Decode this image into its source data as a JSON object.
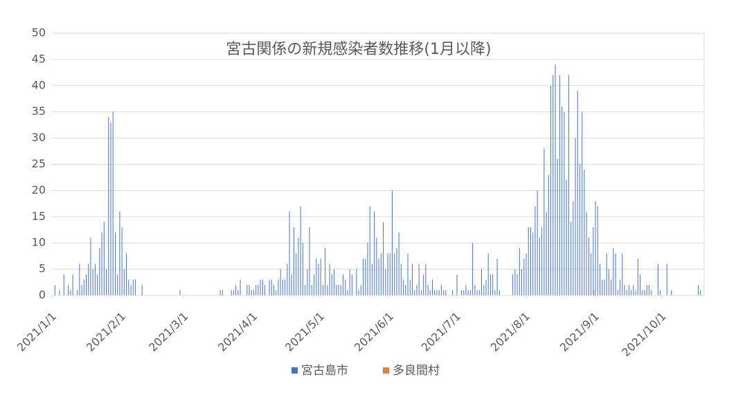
{
  "chart_data": {
    "type": "bar",
    "title": "宮古関係の新規感染者数推移(1月以降)",
    "x": [
      "2021/1/1",
      "2021/1/2",
      "2021/1/3",
      "2021/1/4",
      "2021/1/5",
      "2021/1/6",
      "2021/1/7",
      "2021/1/8",
      "2021/1/9",
      "2021/1/10",
      "2021/1/11",
      "2021/1/12",
      "2021/1/13",
      "2021/1/14",
      "2021/1/15",
      "2021/1/16",
      "2021/1/17",
      "2021/1/18",
      "2021/1/19",
      "2021/1/20",
      "2021/1/21",
      "2021/1/22",
      "2021/1/23",
      "2021/1/24",
      "2021/1/25",
      "2021/1/26",
      "2021/1/27",
      "2021/1/28",
      "2021/1/29",
      "2021/1/30",
      "2021/1/31",
      "2021/2/1",
      "2021/2/2",
      "2021/2/3",
      "2021/2/4",
      "2021/2/5",
      "2021/2/6",
      "2021/2/7",
      "2021/2/8",
      "2021/2/9",
      "2021/2/10",
      "2021/2/11",
      "2021/2/12",
      "2021/2/13",
      "2021/2/14",
      "2021/2/15",
      "2021/2/16",
      "2021/2/17",
      "2021/2/18",
      "2021/2/19",
      "2021/2/20",
      "2021/2/21",
      "2021/2/22",
      "2021/2/23",
      "2021/2/24",
      "2021/2/25",
      "2021/2/26",
      "2021/2/27",
      "2021/2/28",
      "2021/3/1",
      "2021/3/2",
      "2021/3/3",
      "2021/3/4",
      "2021/3/5",
      "2021/3/6",
      "2021/3/7",
      "2021/3/8",
      "2021/3/9",
      "2021/3/10",
      "2021/3/11",
      "2021/3/12",
      "2021/3/13",
      "2021/3/14",
      "2021/3/15",
      "2021/3/16",
      "2021/3/17",
      "2021/3/18",
      "2021/3/19",
      "2021/3/20",
      "2021/3/21",
      "2021/3/22",
      "2021/3/23",
      "2021/3/24",
      "2021/3/25",
      "2021/3/26",
      "2021/3/27",
      "2021/3/28",
      "2021/3/29",
      "2021/3/30",
      "2021/3/31",
      "2021/4/1",
      "2021/4/2",
      "2021/4/3",
      "2021/4/4",
      "2021/4/5",
      "2021/4/6",
      "2021/4/7",
      "2021/4/8",
      "2021/4/9",
      "2021/4/10",
      "2021/4/11",
      "2021/4/12",
      "2021/4/13",
      "2021/4/14",
      "2021/4/15",
      "2021/4/16",
      "2021/4/17",
      "2021/4/18",
      "2021/4/19",
      "2021/4/20",
      "2021/4/21",
      "2021/4/22",
      "2021/4/23",
      "2021/4/24",
      "2021/4/25",
      "2021/4/26",
      "2021/4/27",
      "2021/4/28",
      "2021/4/29",
      "2021/4/30",
      "2021/5/1",
      "2021/5/2",
      "2021/5/3",
      "2021/5/4",
      "2021/5/5",
      "2021/5/6",
      "2021/5/7",
      "2021/5/8",
      "2021/5/9",
      "2021/5/10",
      "2021/5/11",
      "2021/5/12",
      "2021/5/13",
      "2021/5/14",
      "2021/5/15",
      "2021/5/16",
      "2021/5/17",
      "2021/5/18",
      "2021/5/19",
      "2021/5/20",
      "2021/5/21",
      "2021/5/22",
      "2021/5/23",
      "2021/5/24",
      "2021/5/25",
      "2021/5/26",
      "2021/5/27",
      "2021/5/28",
      "2021/5/29",
      "2021/5/30",
      "2021/5/31",
      "2021/6/1",
      "2021/6/2",
      "2021/6/3",
      "2021/6/4",
      "2021/6/5",
      "2021/6/6",
      "2021/6/7",
      "2021/6/8",
      "2021/6/9",
      "2021/6/10",
      "2021/6/11",
      "2021/6/12",
      "2021/6/13",
      "2021/6/14",
      "2021/6/15",
      "2021/6/16",
      "2021/6/17",
      "2021/6/18",
      "2021/6/19",
      "2021/6/20",
      "2021/6/21",
      "2021/6/22",
      "2021/6/23",
      "2021/6/24",
      "2021/6/25",
      "2021/6/26",
      "2021/6/27",
      "2021/6/28",
      "2021/6/29",
      "2021/6/30",
      "2021/7/1",
      "2021/7/2",
      "2021/7/3",
      "2021/7/4",
      "2021/7/5",
      "2021/7/6",
      "2021/7/7",
      "2021/7/8",
      "2021/7/9",
      "2021/7/10",
      "2021/7/11",
      "2021/7/12",
      "2021/7/13",
      "2021/7/14",
      "2021/7/15",
      "2021/7/16",
      "2021/7/17",
      "2021/7/18",
      "2021/7/19",
      "2021/7/20",
      "2021/7/21",
      "2021/7/22",
      "2021/7/23",
      "2021/7/24",
      "2021/7/25",
      "2021/7/26",
      "2021/7/27",
      "2021/7/28",
      "2021/7/29",
      "2021/7/30",
      "2021/7/31",
      "2021/8/1",
      "2021/8/2",
      "2021/8/3",
      "2021/8/4",
      "2021/8/5",
      "2021/8/6",
      "2021/8/7",
      "2021/8/8",
      "2021/8/9",
      "2021/8/10",
      "2021/8/11",
      "2021/8/12",
      "2021/8/13",
      "2021/8/14",
      "2021/8/15",
      "2021/8/16",
      "2021/8/17",
      "2021/8/18",
      "2021/8/19",
      "2021/8/20",
      "2021/8/21",
      "2021/8/22",
      "2021/8/23",
      "2021/8/24",
      "2021/8/25",
      "2021/8/26",
      "2021/8/27",
      "2021/8/28",
      "2021/8/29",
      "2021/8/30",
      "2021/8/31",
      "2021/9/1",
      "2021/9/2",
      "2021/9/3",
      "2021/9/4",
      "2021/9/5",
      "2021/9/6",
      "2021/9/7",
      "2021/9/8",
      "2021/9/9",
      "2021/9/10",
      "2021/9/11",
      "2021/9/12",
      "2021/9/13",
      "2021/9/14",
      "2021/9/15",
      "2021/9/16",
      "2021/9/17",
      "2021/9/18",
      "2021/9/19",
      "2021/9/20",
      "2021/9/21",
      "2021/9/22",
      "2021/9/23",
      "2021/9/24",
      "2021/9/25",
      "2021/9/26",
      "2021/9/27",
      "2021/9/28",
      "2021/9/29",
      "2021/9/30",
      "2021/10/1",
      "2021/10/2",
      "2021/10/3",
      "2021/10/4",
      "2021/10/5",
      "2021/10/6",
      "2021/10/7",
      "2021/10/8",
      "2021/10/9",
      "2021/10/10",
      "2021/10/11",
      "2021/10/12",
      "2021/10/13",
      "2021/10/14",
      "2021/10/15",
      "2021/10/16",
      "2021/10/17",
      "2021/10/18",
      "2021/10/19"
    ],
    "series": [
      {
        "name": "宮古島市",
        "color": "#4472c4",
        "values": [
          0,
          2,
          0,
          1,
          0,
          4,
          0,
          2,
          1,
          4,
          0,
          1,
          6,
          2,
          3,
          4,
          6,
          11,
          5,
          6,
          4,
          9,
          12,
          14,
          5,
          34,
          33,
          35,
          12,
          4,
          16,
          13,
          5,
          8,
          3,
          2,
          3,
          3,
          0,
          0,
          2,
          0,
          0,
          0,
          0,
          0,
          0,
          0,
          0,
          0,
          0,
          0,
          0,
          0,
          0,
          0,
          0,
          1,
          0,
          0,
          0,
          0,
          0,
          0,
          0,
          0,
          0,
          0,
          0,
          0,
          0,
          0,
          0,
          0,
          0,
          1,
          1,
          0,
          0,
          0,
          1,
          1,
          2,
          1,
          3,
          0,
          0,
          2,
          2,
          1,
          1,
          2,
          2,
          3,
          3,
          2,
          0,
          3,
          3,
          2,
          1,
          3,
          5,
          3,
          3,
          6,
          16,
          4,
          13,
          8,
          11,
          17,
          10,
          2,
          5,
          13,
          2,
          4,
          7,
          6,
          7,
          2,
          9,
          2,
          6,
          4,
          5,
          2,
          2,
          2,
          4,
          3,
          1,
          5,
          4,
          0,
          5,
          1,
          2,
          7,
          7,
          10,
          17,
          6,
          16,
          11,
          7,
          8,
          14,
          5,
          8,
          8,
          20,
          8,
          9,
          12,
          6,
          3,
          2,
          8,
          3,
          6,
          1,
          2,
          6,
          1,
          4,
          6,
          2,
          1,
          3,
          1,
          1,
          1,
          2,
          1,
          1,
          0,
          0,
          1,
          0,
          4,
          0,
          1,
          1,
          2,
          1,
          1,
          10,
          2,
          1,
          1,
          5,
          2,
          3,
          8,
          4,
          4,
          1,
          7,
          1,
          0,
          0,
          0,
          0,
          0,
          4,
          5,
          4,
          9,
          5,
          7,
          8,
          13,
          13,
          12,
          17,
          20,
          11,
          13,
          28,
          16,
          23,
          40,
          42,
          44,
          26,
          42,
          36,
          35,
          22,
          42,
          14,
          18,
          30,
          39,
          25,
          35,
          24,
          16,
          11,
          8,
          13,
          18,
          17,
          6,
          3,
          3,
          8,
          5,
          3,
          9,
          8,
          1,
          3,
          8,
          2,
          1,
          2,
          1,
          2,
          1,
          7,
          4,
          1,
          1,
          2,
          2,
          1,
          0,
          0,
          6,
          1,
          0,
          0,
          6,
          0,
          1,
          0,
          0,
          0,
          0,
          0,
          0,
          0,
          0,
          0,
          0,
          0,
          2,
          1,
          0
        ]
      },
      {
        "name": "多良間村",
        "color": "#ed7d31",
        "values": [
          0,
          0,
          0,
          0,
          0,
          0,
          0,
          0,
          0,
          0,
          0,
          0,
          0,
          0,
          0,
          0,
          0,
          0,
          0,
          0,
          0,
          0,
          0,
          0,
          0,
          0,
          0,
          0,
          0,
          0,
          0,
          0,
          0,
          0,
          0,
          0,
          0,
          0,
          0,
          0,
          0,
          0,
          0,
          0,
          0,
          0,
          0,
          0,
          0,
          0,
          0,
          0,
          0,
          0,
          0,
          0,
          0,
          0,
          0,
          0,
          0,
          0,
          0,
          0,
          0,
          0,
          0,
          0,
          0,
          0,
          0,
          0,
          0,
          0,
          0,
          0,
          0,
          0,
          0,
          0,
          0,
          0,
          0,
          0,
          0,
          0,
          0,
          0,
          0,
          0,
          0,
          0,
          0,
          0,
          0,
          0,
          0,
          0,
          0,
          0,
          0,
          0,
          0,
          0,
          0,
          0,
          0,
          0,
          0,
          0,
          0,
          0,
          0,
          0,
          0,
          0,
          0,
          0,
          0,
          0,
          0,
          0,
          0,
          0,
          0,
          0,
          0,
          0,
          0,
          0,
          0,
          0,
          0,
          0,
          0,
          0,
          0,
          0,
          0,
          0,
          0,
          0,
          0,
          0,
          0,
          0,
          0,
          0,
          0,
          0,
          0,
          0,
          0,
          0,
          0,
          0,
          0,
          0,
          0,
          0,
          0,
          0,
          0,
          0,
          0,
          0,
          0,
          0,
          0,
          0,
          0,
          0,
          0,
          0,
          0,
          0,
          0,
          0,
          0,
          0,
          0,
          0,
          0,
          0,
          0,
          0,
          0,
          0,
          0,
          0,
          0,
          0,
          0,
          0,
          0,
          0,
          0,
          0,
          0,
          0,
          0,
          0,
          0,
          0,
          0,
          0,
          0,
          0,
          0,
          0,
          0,
          0,
          0,
          0,
          0,
          0,
          0,
          0,
          0,
          0,
          0,
          0,
          0,
          0,
          0,
          0,
          0,
          0,
          0,
          0,
          0,
          0,
          0,
          0,
          0,
          0,
          0,
          0,
          0,
          0,
          0,
          0,
          1,
          0,
          0,
          0,
          0,
          0,
          0,
          0,
          0,
          0,
          0,
          0,
          0,
          0,
          0,
          0,
          0,
          0,
          0,
          0,
          0,
          0,
          0,
          0,
          0,
          0,
          0,
          0,
          0,
          0,
          0,
          0,
          0,
          0,
          0,
          0,
          0,
          0,
          0,
          0,
          0,
          0,
          0,
          0,
          0,
          0,
          0,
          0,
          0,
          0
        ]
      }
    ],
    "xlim": [
      "2021/1/1",
      "2021/10/19"
    ],
    "xticks": [
      "2021/1/1",
      "2021/2/1",
      "2021/3/1",
      "2021/4/1",
      "2021/5/1",
      "2021/6/1",
      "2021/7/1",
      "2021/8/1",
      "2021/9/1",
      "2021/10/1"
    ],
    "ylim": [
      0,
      50
    ],
    "yticks": [
      0,
      5,
      10,
      15,
      20,
      25,
      30,
      35,
      40,
      45,
      50
    ],
    "grid": true,
    "legend": "bottom"
  }
}
